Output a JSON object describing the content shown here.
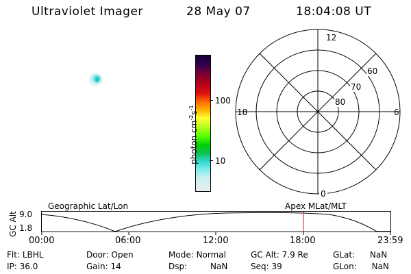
{
  "header": {
    "title": "Ultraviolet Imager",
    "date": "28 May 07",
    "time": "18:04:08 UT"
  },
  "colorbar": {
    "label": "photon cm",
    "exp1": "-2",
    "mid": "s",
    "exp2": "-1",
    "tick_hi": "100",
    "tick_lo": "10"
  },
  "polar_plot": {
    "mlt_top": "12",
    "mlt_bottom": "0",
    "mlt_left": "18",
    "mlt_right": "6",
    "lat_labels": [
      "60",
      "70",
      "80"
    ]
  },
  "orbit_panel": {
    "left_label": "Geographic Lat/Lon",
    "right_label": "Apex MLat/MLT",
    "y_axis_label": "GC Alt",
    "y_ticks": [
      "9.0",
      "1.8"
    ],
    "x_ticks": [
      "00:00",
      "06:00",
      "12:00",
      "18:00",
      "23:59"
    ],
    "current_time_marker": "18:04"
  },
  "status": {
    "flt_label": "Flt:",
    "flt_value": "LBHL",
    "door_label": "Door:",
    "door_value": "Open",
    "mode_label": "Mode:",
    "mode_value": "Normal",
    "gcalt_label": "GC Alt:",
    "gcalt_value": "7.9 Re",
    "glat_label": "GLat:",
    "glat_value": "NaN",
    "ip_label": "IP:",
    "ip_value": "36.0",
    "gain_label": "Gain:",
    "gain_value": "14",
    "dsp_label": "Dsp:",
    "dsp_value": "NaN",
    "seq_label": "Seq:",
    "seq_value": "39",
    "glon_label": "GLon:",
    "glon_value": "NaN"
  },
  "colors": {
    "orbit_marker": "#cc2222",
    "blob": "#3ad6d6"
  }
}
